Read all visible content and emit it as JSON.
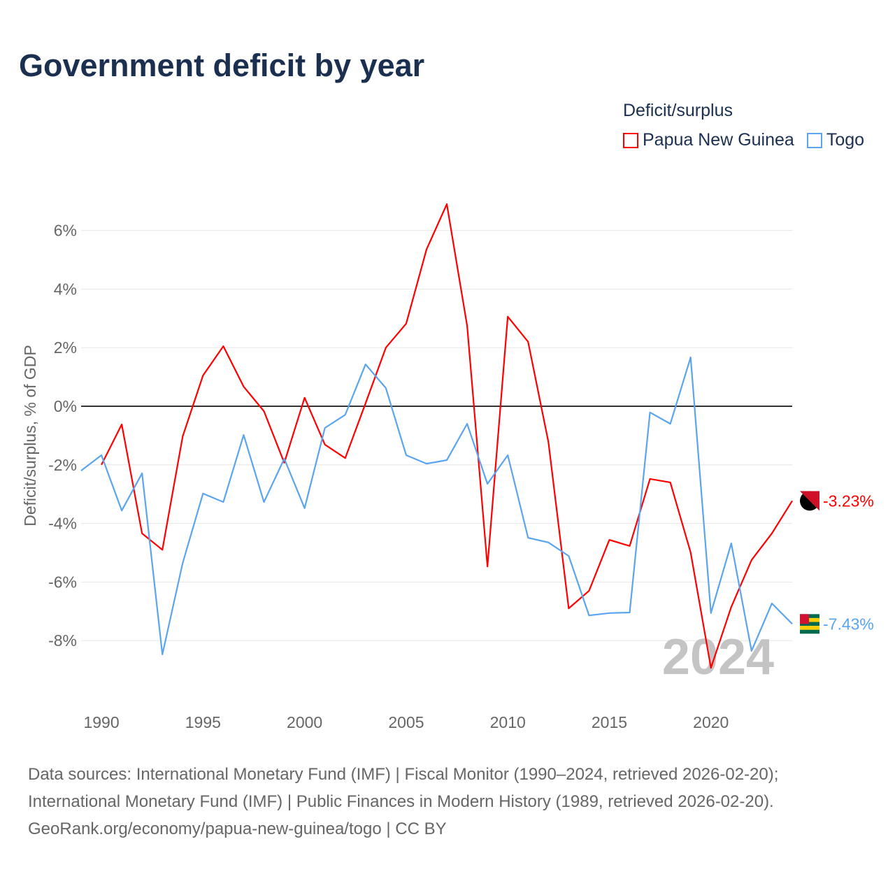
{
  "title": "Government deficit by year",
  "legend": {
    "title": "Deficit/surplus",
    "items": [
      {
        "label": "Papua New Guinea",
        "color": "#ff0000"
      },
      {
        "label": "Togo",
        "color": "#5aa5ee"
      }
    ]
  },
  "year_watermark": "2024",
  "footer": [
    "Data sources: International Monetary Fund (IMF) | Fiscal Monitor (1990–2024, retrieved 2026-02-20);",
    "International Monetary Fund (IMF) | Public Finances in Modern History (1989, retrieved 2026-02-20).",
    "GeoRank.org/economy/papua-new-guinea/togo | CC BY"
  ],
  "chart_data": {
    "type": "line",
    "title": "Government deficit by year",
    "xlabel": "",
    "ylabel": "Deficit/surplus, % of GDP",
    "xlim": [
      1989,
      2024
    ],
    "ylim": [
      -10,
      7
    ],
    "x_ticks": [
      1990,
      1995,
      2000,
      2005,
      2010,
      2015,
      2020
    ],
    "x_tick_labels": [
      "1990",
      "1995",
      "2000",
      "2005",
      "2010",
      "2015",
      "2020"
    ],
    "y_ticks": [
      6,
      4,
      2,
      0,
      -2,
      -4,
      -6,
      -8
    ],
    "y_tick_labels": [
      "6%",
      "4%",
      "2%",
      "0%",
      "-2%",
      "-4%",
      "-6%",
      "-8%"
    ],
    "grid": true,
    "legend_position": "top-right",
    "series": [
      {
        "name": "Papua New Guinea",
        "color": "#ff0000",
        "end_label": "-3.23%",
        "x": [
          1990,
          1991,
          1992,
          1993,
          1994,
          1995,
          1996,
          1997,
          1998,
          1999,
          2000,
          2001,
          2002,
          2003,
          2004,
          2005,
          2006,
          2007,
          2008,
          2009,
          2010,
          2011,
          2012,
          2013,
          2014,
          2015,
          2016,
          2017,
          2018,
          2019,
          2020,
          2021,
          2022,
          2023,
          2024
        ],
        "values": [
          -2.0,
          -0.62,
          -4.34,
          -4.9,
          -1.03,
          1.05,
          2.05,
          0.67,
          -0.17,
          -1.93,
          0.29,
          -1.31,
          -1.77,
          0.1,
          2.0,
          2.82,
          5.35,
          6.9,
          2.75,
          -5.47,
          3.06,
          2.2,
          -1.22,
          -6.9,
          -6.3,
          -4.56,
          -4.77,
          -2.48,
          -2.6,
          -4.99,
          -8.93,
          -6.85,
          -5.25,
          -4.34,
          -3.23
        ]
      },
      {
        "name": "Togo",
        "color": "#5aa5ee",
        "end_label": "-7.43%",
        "x": [
          1989,
          1990,
          1991,
          1992,
          1993,
          1994,
          1995,
          1996,
          1997,
          1998,
          1999,
          2000,
          2001,
          2002,
          2003,
          2004,
          2005,
          2006,
          2007,
          2008,
          2009,
          2010,
          2011,
          2012,
          2013,
          2014,
          2015,
          2016,
          2017,
          2018,
          2019,
          2020,
          2021,
          2022,
          2023,
          2024
        ],
        "values": [
          -2.2,
          -1.67,
          -3.56,
          -2.29,
          -8.47,
          -5.35,
          -2.98,
          -3.27,
          -0.98,
          -3.27,
          -1.79,
          -3.48,
          -0.74,
          -0.29,
          1.43,
          0.62,
          -1.67,
          -1.96,
          -1.84,
          -0.6,
          -2.65,
          -1.67,
          -4.49,
          -4.65,
          -5.11,
          -7.14,
          -7.06,
          -7.04,
          -0.21,
          -0.6,
          1.67,
          -7.06,
          -4.68,
          -8.35,
          -6.73,
          -7.43
        ]
      }
    ]
  }
}
